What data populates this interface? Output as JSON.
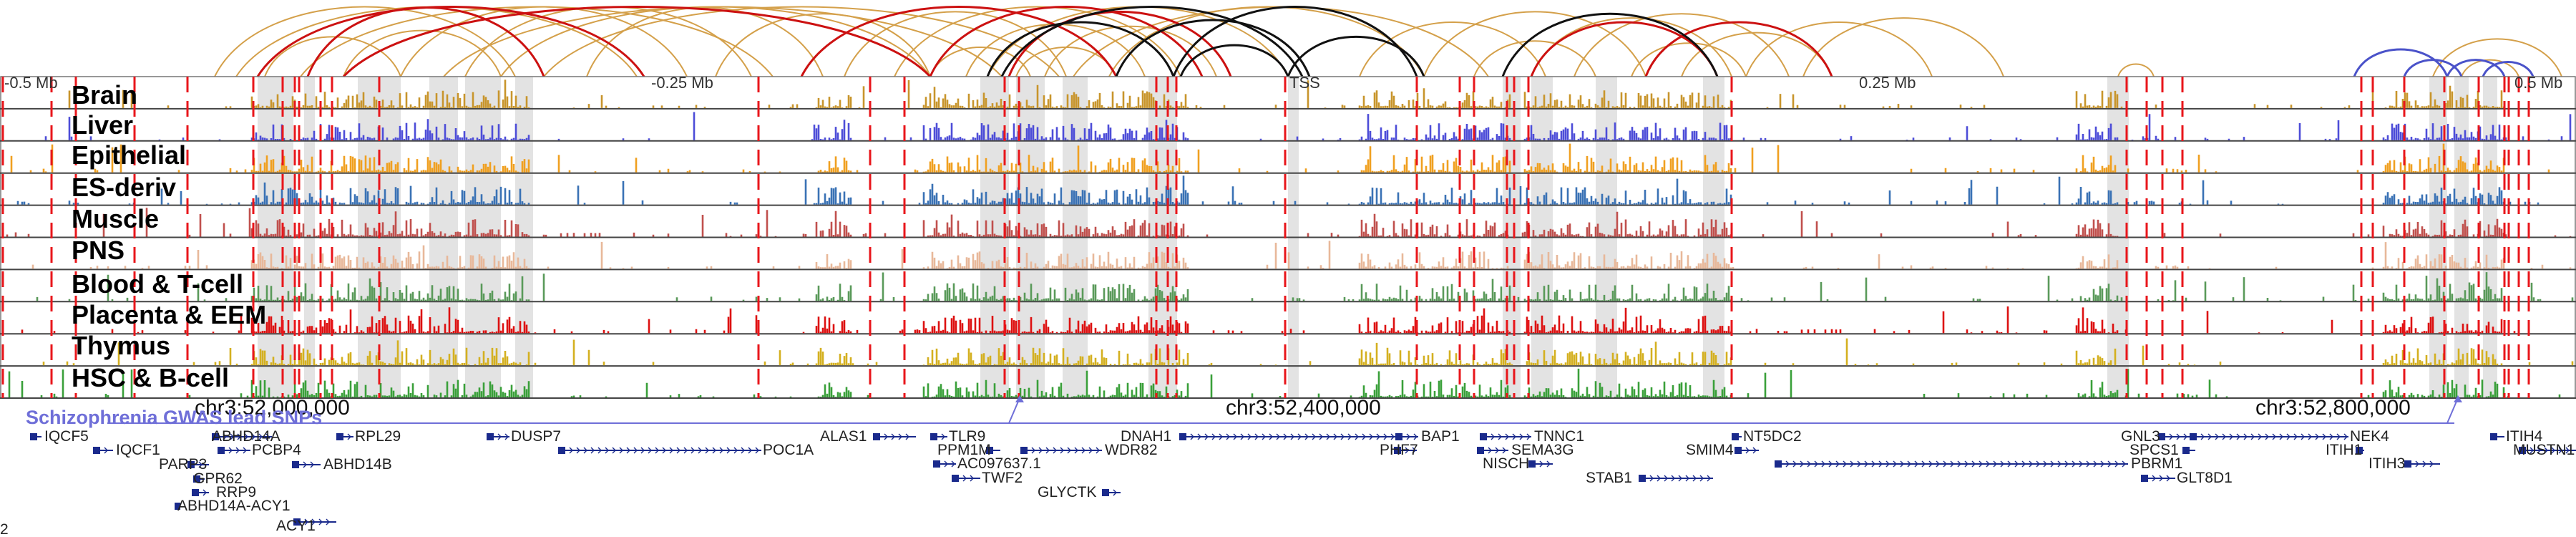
{
  "figure": {
    "axis_labels": {
      "left": "-0.5 Mb",
      "mid_left": "-0.25 Mb",
      "tss": "TSS",
      "mid_right": "0.25 Mb",
      "right": "0.5 Mb"
    },
    "coordinate_labels": [
      "chr3:52,000,000",
      "chr3:52,400,000",
      "chr3:52,800,000"
    ],
    "snp_track_title": "Schizophrenia GWAS lead SNPs",
    "colors": {
      "divider": "#444444",
      "boundary": "#e8161b",
      "highlight": "#d9d9d9",
      "arc_gold": "#d4a04a",
      "arc_red": "#cc1111",
      "arc_black": "#111111",
      "arc_blue": "#4a52c9",
      "gene": "#1a2a8c",
      "snp": "#6f6fd8"
    },
    "tracks": [
      {
        "name": "Brain",
        "color": "#c8952c"
      },
      {
        "name": "Liver",
        "color": "#4d4dd8"
      },
      {
        "name": "Epithelial",
        "color": "#f0a020"
      },
      {
        "name": "ES-deriv",
        "color": "#3a72b5"
      },
      {
        "name": "Muscle",
        "color": "#c0504d"
      },
      {
        "name": "PNS",
        "color": "#e8b89a"
      },
      {
        "name": "Blood & T-cell",
        "color": "#5a9a5a"
      },
      {
        "name": "Placenta & EEM",
        "color": "#dd1111"
      },
      {
        "name": "Thymus",
        "color": "#d4b020"
      },
      {
        "name": "HSC & B-cell",
        "color": "#3aa03a"
      }
    ],
    "genes": [
      "IQCF5",
      "IQCF1",
      "PARP3",
      "GPR62",
      "RRP9",
      "ABHD14A-ACY1",
      "ACY1",
      "ABHD14A",
      "PCBP4",
      "ABHD14B",
      "RPL29",
      "DUSP7",
      "POC1A",
      "ALAS1",
      "TLR9",
      "PPM1M",
      "AC097637.1",
      "TWF2",
      "WDR82",
      "GLYCTK",
      "DNAH1",
      "BAP1",
      "PHF7",
      "TNNC1",
      "SEMA3G",
      "NISCH",
      "STAB1",
      "NT5DC2",
      "SMIM4",
      "GNL3",
      "SPCS1",
      "PBRM1",
      "GLT8D1",
      "NEK4",
      "ITIH1",
      "ITIH3",
      "ITIH4",
      "MUSTN1"
    ],
    "left_edge_char": "2"
  }
}
